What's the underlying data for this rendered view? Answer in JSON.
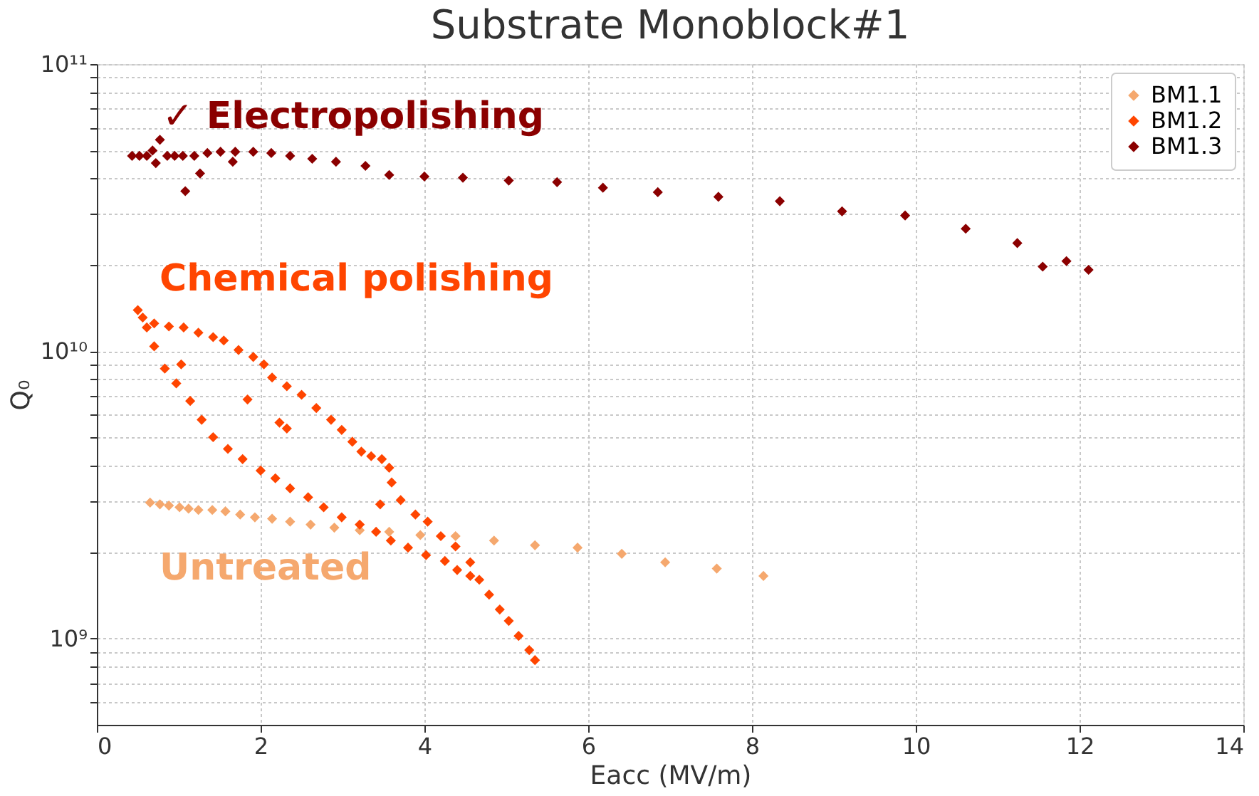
{
  "chart_data": {
    "type": "scatter",
    "title": "Substrate Monoblock#1",
    "xlabel": "Eacc (MV/m)",
    "ylabel": "Q₀",
    "log": "y",
    "grid": true,
    "legend": "top right",
    "marker": "diamond",
    "xlim": [
      0,
      14
    ],
    "xticks": [
      0,
      2,
      4,
      6,
      8,
      10,
      12,
      14
    ],
    "ylim": [
      500000000,
      100000000000
    ],
    "yticks": [
      {
        "value": 600000000,
        "label": null
      },
      {
        "value": 700000000,
        "label": null
      },
      {
        "value": 800000000,
        "label": null
      },
      {
        "value": 900000000,
        "label": null
      },
      {
        "value": 1000000000,
        "label": "10⁹"
      },
      {
        "value": 2000000000,
        "label": null
      },
      {
        "value": 3000000000,
        "label": null
      },
      {
        "value": 4000000000,
        "label": null
      },
      {
        "value": 5000000000,
        "label": null
      },
      {
        "value": 6000000000,
        "label": null
      },
      {
        "value": 7000000000,
        "label": null
      },
      {
        "value": 8000000000,
        "label": null
      },
      {
        "value": 9000000000,
        "label": null
      },
      {
        "value": 10000000000,
        "label": "10¹⁰"
      },
      {
        "value": 20000000000,
        "label": null
      },
      {
        "value": 30000000000,
        "label": null
      },
      {
        "value": 40000000000,
        "label": null
      },
      {
        "value": 50000000000,
        "label": null
      },
      {
        "value": 60000000000,
        "label": null
      },
      {
        "value": 70000000000,
        "label": null
      },
      {
        "value": 80000000000,
        "label": null
      },
      {
        "value": 90000000000,
        "label": null
      },
      {
        "value": 100000000000,
        "label": "10¹¹"
      }
    ],
    "series": [
      {
        "name": "BM1.1",
        "color": "#f5a86e",
        "x": [
          0.65,
          0.77,
          0.88,
          1.01,
          1.12,
          1.24,
          1.41,
          1.57,
          1.75,
          1.93,
          2.14,
          2.36,
          2.61,
          2.9,
          3.21,
          3.57,
          3.95,
          4.38,
          4.85,
          5.35,
          5.87,
          6.41,
          6.94,
          7.57,
          8.14
        ],
        "values": [
          2970000000.0,
          2930000000.0,
          2900000000.0,
          2860000000.0,
          2830000000.0,
          2800000000.0,
          2800000000.0,
          2770000000.0,
          2700000000.0,
          2640000000.0,
          2610000000.0,
          2550000000.0,
          2490000000.0,
          2430000000.0,
          2380000000.0,
          2350000000.0,
          2290000000.0,
          2270000000.0,
          2190000000.0,
          2110000000.0,
          2070000000.0,
          1970000000.0,
          1840000000.0,
          1750000000.0,
          1650000000.0
        ]
      },
      {
        "name": "BM1.2",
        "color": "#ff4500",
        "x": [
          0.5,
          0.56,
          0.7,
          0.88,
          1.06,
          1.24,
          1.42,
          1.55,
          1.73,
          1.91,
          2.04,
          2.14,
          2.32,
          2.5,
          2.68,
          2.86,
          2.99,
          3.12,
          3.23,
          3.35,
          3.48,
          3.57,
          3.6,
          3.71,
          3.89,
          4.04,
          4.2,
          4.38,
          4.56,
          4.67,
          4.79,
          4.92,
          5.03,
          5.15,
          5.28,
          5.35,
          0.61,
          0.7,
          0.83,
          0.97,
          1.14,
          1.28,
          1.42,
          1.6,
          1.78,
          2.0,
          2.18,
          2.36,
          2.58,
          2.77,
          2.99,
          3.21,
          3.41,
          3.59,
          3.8,
          4.02,
          4.25,
          4.4,
          4.56,
          1.03,
          1.84,
          2.23,
          2.32,
          3.46
        ],
        "values": [
          13900000000.0,
          13100000000.0,
          12500000000.0,
          12200000000.0,
          12100000000.0,
          11600000000.0,
          11200000000.0,
          10900000000.0,
          10100000000.0,
          9550000000.0,
          9000000000.0,
          8100000000.0,
          7550000000.0,
          7050000000.0,
          6340000000.0,
          5770000000.0,
          5320000000.0,
          4840000000.0,
          4470000000.0,
          4310000000.0,
          4210000000.0,
          3930000000.0,
          3490000000.0,
          3030000000.0,
          2700000000.0,
          2550000000.0,
          2270000000.0,
          2090000000.0,
          1840000000.0,
          1600000000.0,
          1420000000.0,
          1260000000.0,
          1150000000.0,
          1020000000.0,
          910000000.0,
          840000000.0,
          12100000000.0,
          10400000000.0,
          8700000000.0,
          7730000000.0,
          6710000000.0,
          5770000000.0,
          5020000000.0,
          4570000000.0,
          4210000000.0,
          3840000000.0,
          3610000000.0,
          3330000000.0,
          3100000000.0,
          2860000000.0,
          2640000000.0,
          2490000000.0,
          2350000000.0,
          2190000000.0,
          2070000000.0,
          1950000000.0,
          1860000000.0,
          1730000000.0,
          1650000000.0,
          9000000000.0,
          6790000000.0,
          5640000000.0,
          5380000000.0,
          2930000000.0
        ]
      },
      {
        "name": "BM1.3",
        "color": "#8b0000",
        "x": [
          0.43,
          0.52,
          0.61,
          0.68,
          0.72,
          0.77,
          0.86,
          0.95,
          1.05,
          1.08,
          1.19,
          1.26,
          1.35,
          1.51,
          1.66,
          1.69,
          1.91,
          2.13,
          2.36,
          2.63,
          2.92,
          3.28,
          3.57,
          4.0,
          4.47,
          5.03,
          5.62,
          6.18,
          6.85,
          7.59,
          8.34,
          9.1,
          9.87,
          10.61,
          11.24,
          11.55,
          11.84,
          12.11
        ],
        "values": [
          47900000000.0,
          47900000000.0,
          47900000000.0,
          50000000000.0,
          45200000000.0,
          54500000000.0,
          47900000000.0,
          47900000000.0,
          47900000000.0,
          36100000000.0,
          47900000000.0,
          41600000000.0,
          49000000000.0,
          49500000000.0,
          45700000000.0,
          49500000000.0,
          49500000000.0,
          49000000000.0,
          47900000000.0,
          46800000000.0,
          45700000000.0,
          44200000000.0,
          41100000000.0,
          40600000000.0,
          40200000000.0,
          39300000000.0,
          38800000000.0,
          37100000000.0,
          35800000000.0,
          34500000000.0,
          33300000000.0,
          30700000000.0,
          29700000000.0,
          26700000000.0,
          23800000000.0,
          19700000000.0,
          20600000000.0,
          19200000000.0
        ]
      }
    ],
    "annotations": [
      "Untreated",
      "Chemical polishing",
      "✓ Electropolishing"
    ]
  }
}
